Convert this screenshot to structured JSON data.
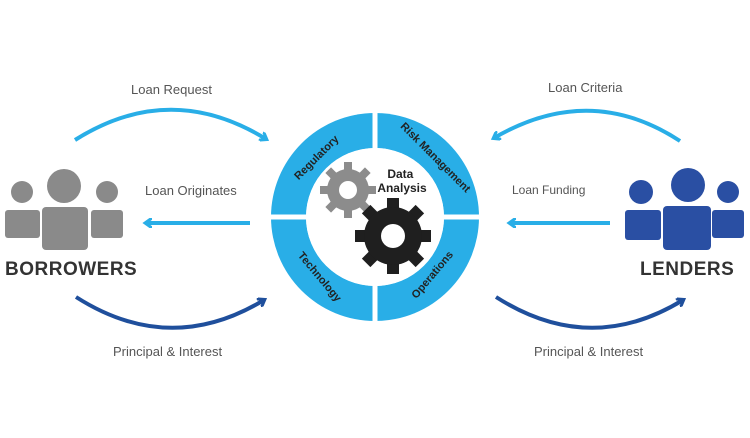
{
  "diagram": {
    "center_title": "Data Analysis",
    "segments": {
      "top_left": "Regulatory",
      "top_right": "Risk Management",
      "bottom_left": "Technology",
      "bottom_right": "Operations"
    },
    "left_party": "BORROWERS",
    "right_party": "LENDERS",
    "flows": {
      "loan_request": "Loan Request",
      "loan_originates": "Loan Originates",
      "principal_interest_left": "Principal & Interest",
      "loan_criteria": "Loan Criteria",
      "loan_funding": "Loan Funding",
      "principal_interest_right": "Principal & Interest"
    },
    "colors": {
      "ring": "#29aee7",
      "hub": "#ffffff",
      "small_gear": "#8c8c8c",
      "big_gear": "#1f1f1f",
      "light_arrow": "#29aee7",
      "dark_arrow": "#1f4f9c",
      "borrowers": "#8a8a8a",
      "lenders": "#2a4fa3"
    }
  }
}
